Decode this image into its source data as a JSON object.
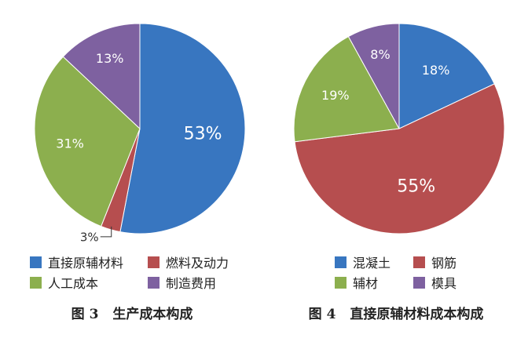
{
  "chart_data": [
    {
      "type": "pie",
      "caption_num": "图 3",
      "caption_text": "生产成本构成",
      "slices": [
        {
          "label": "直接原辅材料",
          "value": 53,
          "display": "53%",
          "color": "#3876c0"
        },
        {
          "label": "燃料及动力",
          "value": 3,
          "display": "3%",
          "color": "#b64e4f"
        },
        {
          "label": "人工成本",
          "value": 31,
          "display": "31%",
          "color": "#8caf4e"
        },
        {
          "label": "制造费用",
          "value": 13,
          "display": "13%",
          "color": "#7e61a0"
        }
      ]
    },
    {
      "type": "pie",
      "caption_num": "图 4",
      "caption_text": "直接原辅材料成本构成",
      "slices": [
        {
          "label": "混凝土",
          "value": 18,
          "display": "18%",
          "color": "#3876c0"
        },
        {
          "label": "钢筋",
          "value": 55,
          "display": "55%",
          "color": "#b64e4f"
        },
        {
          "label": "辅材",
          "value": 19,
          "display": "19%",
          "color": "#8caf4e"
        },
        {
          "label": "模具",
          "value": 8,
          "display": "8%",
          "color": "#7e61a0"
        }
      ]
    }
  ]
}
